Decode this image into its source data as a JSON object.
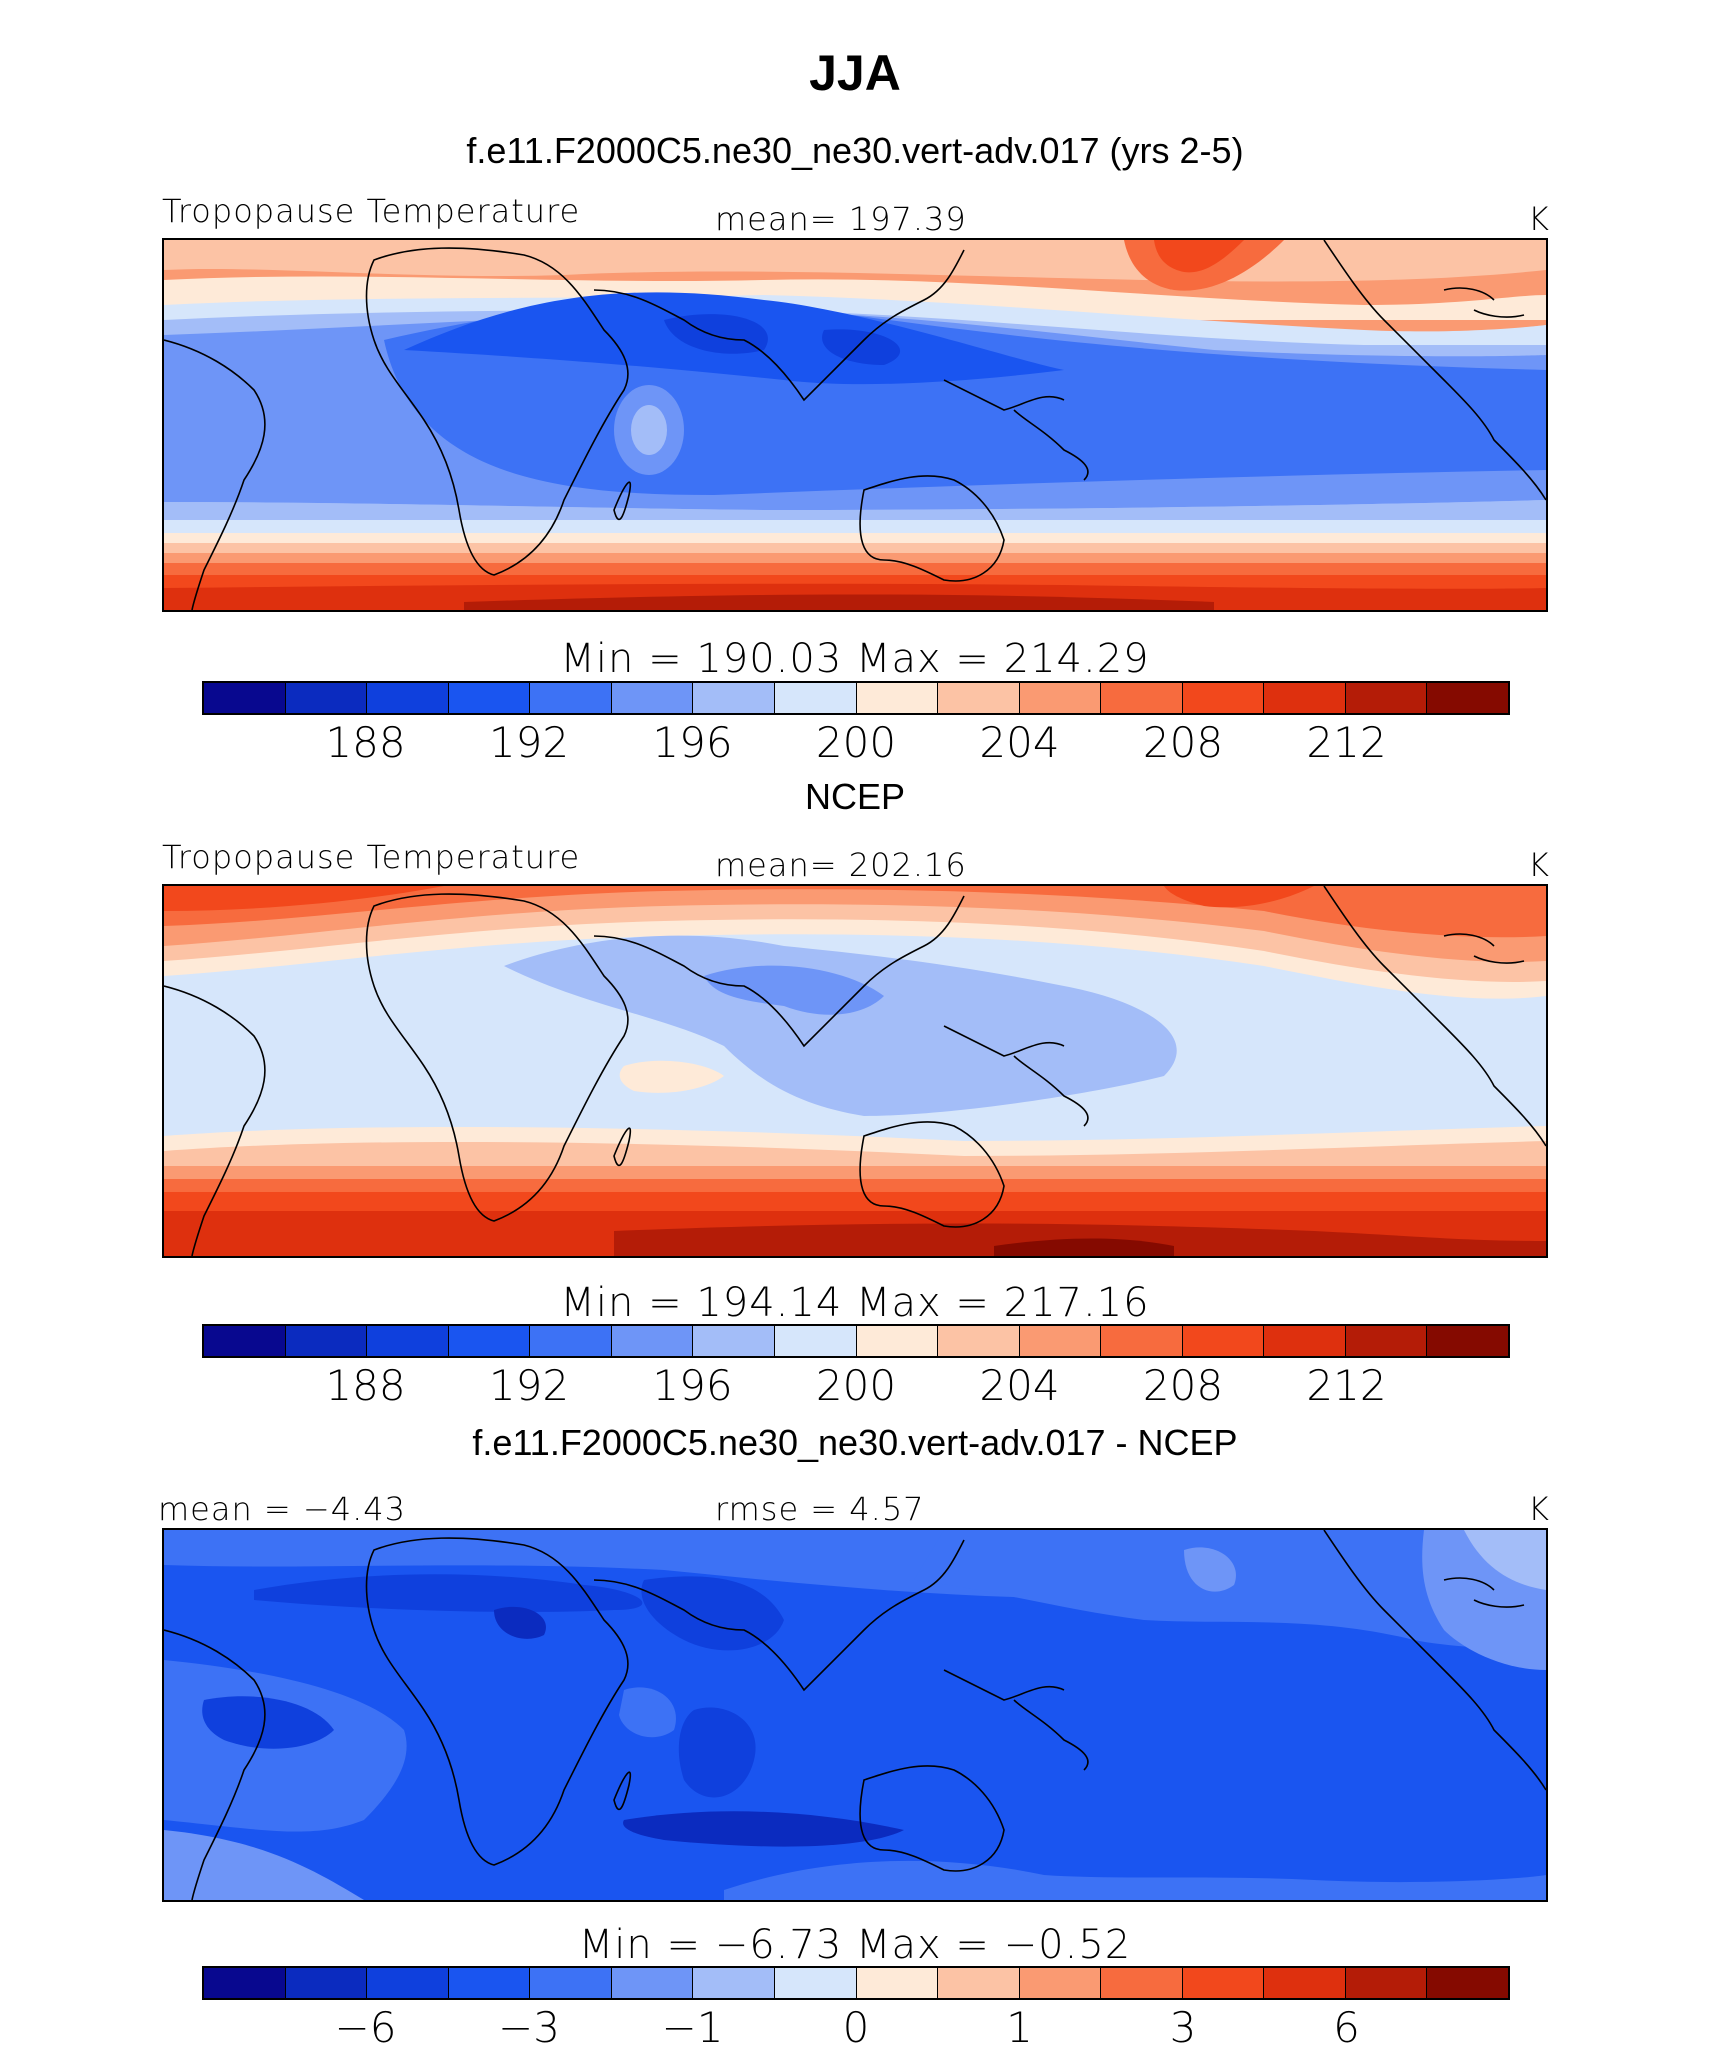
{
  "figure": {
    "title": "JJA",
    "panels": [
      {
        "id": "model",
        "case_title": "f.e11.F2000C5.ne30_ne30.vert-adv.017 (yrs 2-5)",
        "left_label": "Tropopause  Temperature",
        "center_label": "mean=  197.39",
        "right_label": "K",
        "minmax": "Min  =  190.03  Max  =  214.29",
        "colorbar_ticks": [
          "188",
          "192",
          "196",
          "200",
          "204",
          "208",
          "212"
        ]
      },
      {
        "id": "obs",
        "case_title": "NCEP",
        "left_label": "Tropopause  Temperature",
        "center_label": "mean=  202.16",
        "right_label": "K",
        "minmax": "Min  =  194.14  Max  =  217.16",
        "colorbar_ticks": [
          "188",
          "192",
          "196",
          "200",
          "204",
          "208",
          "212"
        ]
      },
      {
        "id": "diff",
        "case_title": "f.e11.F2000C5.ne30_ne30.vert-adv.017 - NCEP",
        "left_label": "mean  =    −4.43",
        "center_label": "rmse  =      4.57",
        "right_label": "K",
        "minmax": "Min  =    −6.73  Max  =    −0.52",
        "colorbar_ticks": [
          "−6",
          "−3",
          "−1",
          "0",
          "1",
          "3",
          "6"
        ]
      }
    ],
    "colorbar_colors": [
      "#08088f",
      "#0b2bbf",
      "#0f40dd",
      "#1a55f0",
      "#3d72f5",
      "#6e95f7",
      "#a3bdf8",
      "#d6e6fb",
      "#feead8",
      "#fcc3a5",
      "#fa9a72",
      "#f76b3e",
      "#f2481c",
      "#de300e",
      "#b41c07",
      "#850a00"
    ]
  }
}
